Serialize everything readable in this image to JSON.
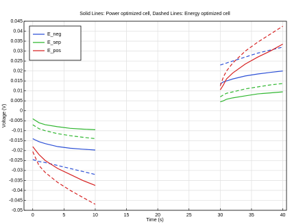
{
  "chart_data": {
    "type": "line",
    "title": "Solid Lines: Power optimized cell, Dashed Lines: Energy optimized cell",
    "x_label": "Time (s)",
    "y_label": "Voltage (V)",
    "x": [
      0,
      0.5,
      1,
      2,
      4,
      6,
      8,
      10,
      20,
      30,
      30.5,
      31,
      32,
      34,
      36,
      38,
      40
    ],
    "series": [
      {
        "name": "E_neg",
        "color": "#2b4fd6",
        "values": [
          -0.014,
          -0.0148,
          -0.0155,
          -0.0165,
          -0.018,
          -0.0188,
          -0.0193,
          -0.0197,
          null,
          0.0135,
          0.0145,
          0.015,
          0.016,
          0.0175,
          0.0185,
          0.0193,
          0.02
        ],
        "dashed_values": [
          -0.0245,
          -0.025,
          -0.0255,
          -0.026,
          -0.0275,
          -0.029,
          -0.0305,
          -0.032,
          null,
          0.023,
          0.0235,
          0.024,
          0.025,
          0.027,
          0.029,
          0.0305,
          0.032
        ]
      },
      {
        "name": "E_sep",
        "color": "#2fb62f",
        "values": [
          -0.004,
          -0.005,
          -0.006,
          -0.007,
          -0.008,
          -0.0088,
          -0.0092,
          -0.0095,
          null,
          0.0045,
          0.005,
          0.0058,
          0.0065,
          0.0075,
          0.0085,
          0.009,
          0.0095
        ],
        "dashed_values": [
          -0.007,
          -0.008,
          -0.009,
          -0.01,
          -0.0115,
          -0.0125,
          -0.0133,
          -0.014,
          null,
          0.007,
          0.008,
          0.0088,
          0.0095,
          0.011,
          0.012,
          0.013,
          0.0137
        ]
      },
      {
        "name": "E_pos",
        "color": "#d62020",
        "values": [
          -0.018,
          -0.02,
          -0.022,
          -0.025,
          -0.029,
          -0.032,
          -0.035,
          -0.0375,
          null,
          0.0105,
          0.013,
          0.016,
          0.019,
          0.0235,
          0.027,
          0.03,
          0.0335
        ],
        "dashed_values": [
          -0.0205,
          -0.024,
          -0.0275,
          -0.031,
          -0.036,
          -0.04,
          -0.0435,
          -0.047,
          null,
          0.0125,
          0.017,
          0.02,
          0.024,
          0.03,
          0.0345,
          0.0385,
          0.0425
        ]
      }
    ],
    "xlim": [
      -1.4,
      40.6
    ],
    "xticks": [
      0,
      5,
      10,
      15,
      20,
      25,
      30,
      35,
      40
    ],
    "ylim": [
      -0.05,
      0.045
    ],
    "yticks": [
      -0.05,
      -0.045,
      -0.04,
      -0.035,
      -0.03,
      -0.025,
      -0.02,
      -0.015,
      -0.01,
      -0.005,
      0,
      0.005,
      0.01,
      0.015,
      0.02,
      0.025,
      0.03,
      0.035,
      0.04,
      0.045
    ],
    "grid": true,
    "legend": "upper left"
  }
}
